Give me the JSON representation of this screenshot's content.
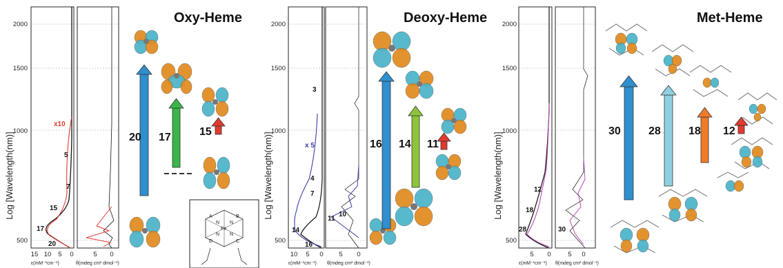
{
  "panels": {
    "oxy": {
      "title": "Oxy-Heme",
      "curve_color": "#e03a2e"
    },
    "deoxy": {
      "title": "Deoxy-Heme",
      "curve_color": "#3b3fa8"
    },
    "met": {
      "title": "Met-Heme",
      "curve_color": "#b64bb5"
    }
  },
  "axes": {
    "ylabel": "Log [Wavelength(nm)]",
    "yticks": [
      "2000",
      "1500",
      "1000",
      "500"
    ],
    "eps_label": "ε(mM⁻¹cm⁻¹)",
    "theta_label": "θ(mdeg cm² dmol⁻¹)",
    "oxy_eps_ticks": [
      "15",
      "10",
      "5",
      "0"
    ],
    "oxy_theta_ticks": [
      "5",
      "0"
    ],
    "deoxy_eps_ticks": [
      "10",
      "5",
      "0"
    ],
    "deoxy_theta_ticks": [
      "5",
      "0"
    ],
    "met_eps_ticks": [
      "5",
      "0"
    ],
    "met_theta_ticks": [
      "5",
      "0"
    ]
  },
  "oxy_labels": {
    "x10": "x10",
    "p5": "5",
    "p7": "7",
    "p15": "15",
    "p17": "17",
    "p20": "20"
  },
  "oxy_transitions": [
    "20",
    "17",
    "15"
  ],
  "deoxy_labels": {
    "x5": "x 5",
    "p3": "3",
    "p4": "4",
    "p7": "7",
    "p14": "14",
    "p16": "16",
    "p11": "11",
    "p10": "10"
  },
  "deoxy_transitions": [
    "16",
    "14",
    "11"
  ],
  "met_labels": {
    "p12": "12",
    "p18": "18",
    "p28": "28",
    "p30": "30"
  },
  "met_transitions": [
    "30",
    "28",
    "18",
    "12"
  ],
  "porphyrin": {
    "labels": [
      "A",
      "B",
      "C",
      "D",
      "N",
      "N",
      "N",
      "N",
      "Fe"
    ]
  },
  "colors": {
    "orbital_orange": "#e08a1e",
    "orbital_teal": "#4ab3c9",
    "arrow_blue": "#2f8fcf",
    "arrow_green": "#3ab54a",
    "arrow_lime": "#8cc43c",
    "arrow_lightblue": "#8fd0e0",
    "arrow_orange": "#ef7b2a",
    "arrow_red": "#e23a2e"
  }
}
